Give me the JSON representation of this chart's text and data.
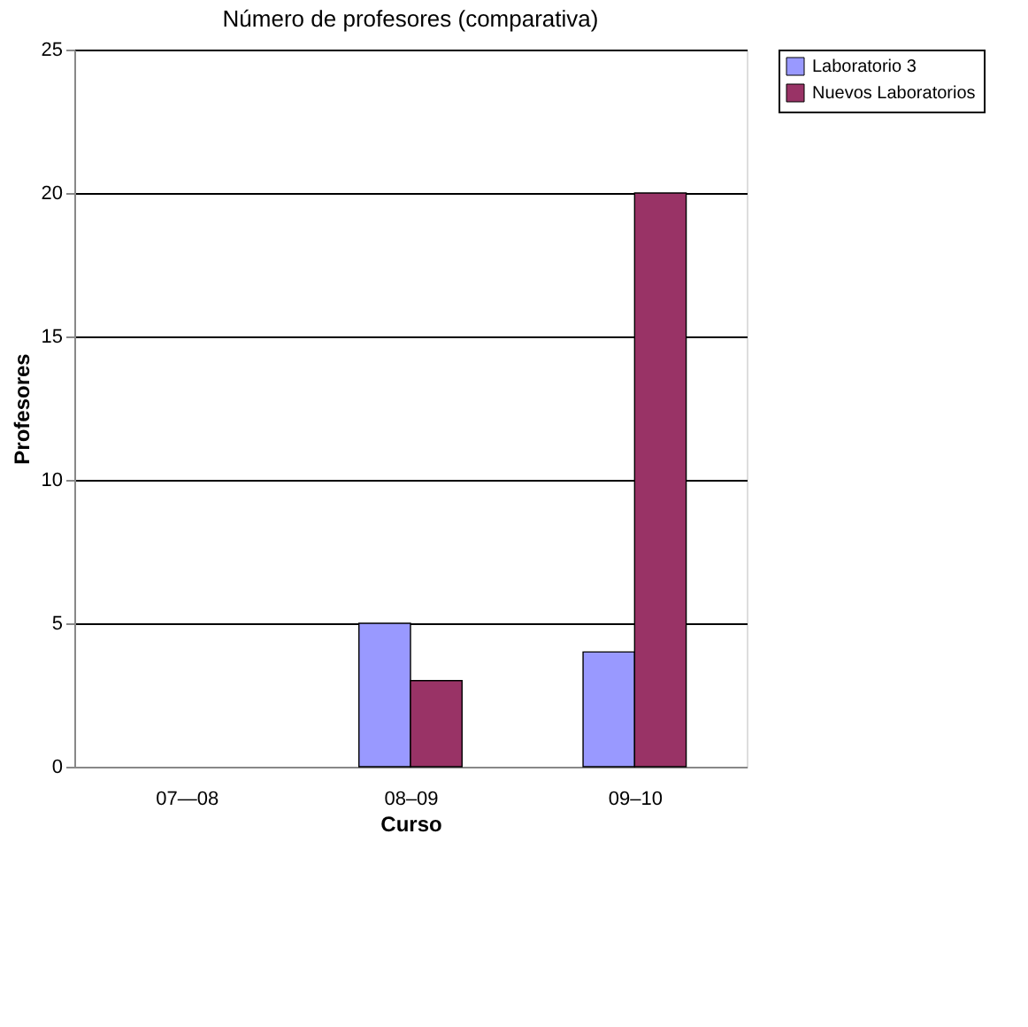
{
  "chart_data": {
    "type": "bar",
    "title": "Número de profesores (comparativa)",
    "xlabel": "Curso",
    "ylabel": "Profesores",
    "categories": [
      "07—08",
      "08–09",
      "09–10"
    ],
    "series": [
      {
        "name": "Laboratorio 3",
        "color": "#9999ff",
        "values": [
          null,
          5,
          4
        ]
      },
      {
        "name": "Nuevos Laboratorios",
        "color": "#993366",
        "values": [
          null,
          3,
          20
        ]
      }
    ],
    "ylim": [
      0,
      25
    ],
    "yticks": [
      0,
      5,
      10,
      15,
      20,
      25
    ],
    "grid": "y",
    "legend": "right"
  }
}
